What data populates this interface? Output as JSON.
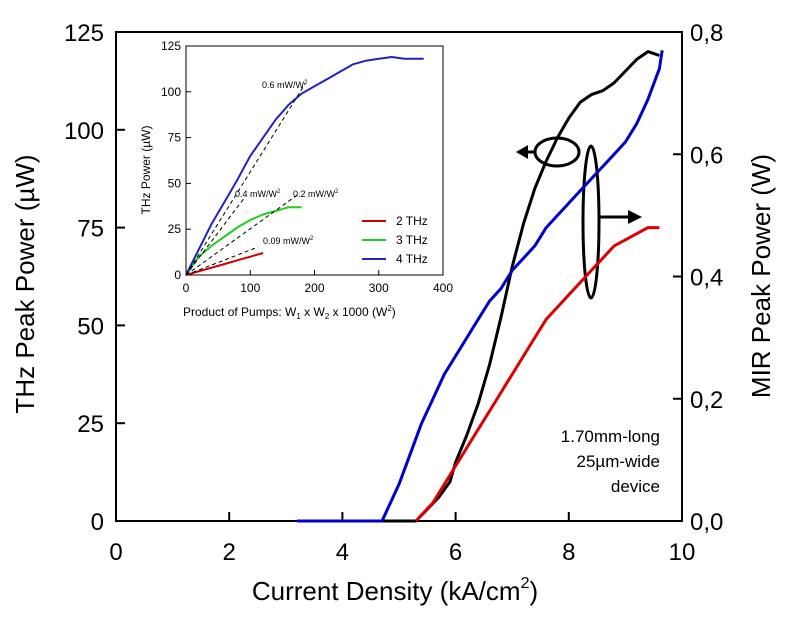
{
  "chart_data": [
    {
      "type": "line",
      "title": "",
      "xlabel": "Current Density (kA/cm",
      "xlabel_sup": "2",
      "xlabel_end": ")",
      "ylabel_left": "THz Peak Power (µW)",
      "ylabel_right": "MIR Peak Power (W)",
      "xlim": [
        0,
        10
      ],
      "ylim_left": [
        0,
        125
      ],
      "ylim_right": [
        0,
        0.8
      ],
      "x_ticks": [
        "0",
        "2",
        "4",
        "6",
        "8",
        "10"
      ],
      "y_left_ticks": [
        "0",
        "25",
        "50",
        "75",
        "100",
        "125"
      ],
      "y_right_ticks": [
        "0,0",
        "0,2",
        "0,4",
        "0,6",
        "0,8"
      ],
      "grid": false,
      "annotation": [
        "1.70mm-long",
        "25µm-wide",
        "device"
      ],
      "series": [
        {
          "axis": "left",
          "color": "#000000",
          "x": [
            3.2,
            4.0,
            5.0,
            5.3,
            5.5,
            5.7,
            5.9,
            6.0,
            6.2,
            6.4,
            6.6,
            6.8,
            7.0,
            7.2,
            7.4,
            7.6,
            7.8,
            8.0,
            8.2,
            8.4,
            8.6,
            8.8,
            9.0,
            9.2,
            9.4,
            9.6
          ],
          "y": [
            0,
            0,
            0,
            0,
            3,
            6,
            10,
            15,
            22,
            30,
            40,
            52,
            65,
            76,
            85,
            92,
            98,
            103,
            107,
            109,
            110,
            112,
            115,
            118,
            120,
            119
          ]
        },
        {
          "axis": "right",
          "color": "#0000cc",
          "x": [
            3.2,
            4.0,
            4.7,
            4.8,
            5.0,
            5.2,
            5.4,
            5.6,
            5.8,
            6.0,
            6.2,
            6.4,
            6.6,
            6.8,
            7.0,
            7.2,
            7.4,
            7.6,
            7.8,
            8.0,
            8.2,
            8.4,
            8.6,
            8.8,
            9.0,
            9.2,
            9.4,
            9.6,
            9.65
          ],
          "y": [
            0,
            0,
            0,
            0.02,
            0.06,
            0.11,
            0.16,
            0.2,
            0.24,
            0.27,
            0.3,
            0.33,
            0.36,
            0.38,
            0.41,
            0.43,
            0.45,
            0.48,
            0.5,
            0.52,
            0.54,
            0.56,
            0.58,
            0.6,
            0.62,
            0.65,
            0.69,
            0.74,
            0.77
          ]
        },
        {
          "axis": "right",
          "color": "#dd0000",
          "x": [
            5.3,
            5.4,
            5.6,
            5.8,
            6.0,
            6.2,
            6.4,
            6.6,
            6.8,
            7.0,
            7.2,
            7.4,
            7.6,
            7.8,
            8.0,
            8.2,
            8.4,
            8.6,
            8.8,
            9.0,
            9.2,
            9.4,
            9.6
          ],
          "y": [
            0,
            0.01,
            0.03,
            0.06,
            0.09,
            0.12,
            0.15,
            0.18,
            0.21,
            0.24,
            0.27,
            0.3,
            0.33,
            0.35,
            0.37,
            0.39,
            0.41,
            0.43,
            0.45,
            0.46,
            0.47,
            0.48,
            0.48
          ]
        }
      ]
    },
    {
      "type": "line",
      "title": "",
      "xlabel": "Product of Pumps: W",
      "xlabel_rest": [
        {
          "sub": "1",
          "text": " x W"
        },
        {
          "sub": "2",
          "text": " x 1000 (W"
        },
        {
          "sup": "2",
          "text": ")"
        }
      ],
      "ylabel": "THz Power (µW)",
      "xlim": [
        0,
        400
      ],
      "ylim": [
        0,
        125
      ],
      "x_ticks": [
        "0",
        "100",
        "200",
        "300",
        "400"
      ],
      "y_ticks": [
        "0",
        "25",
        "50",
        "75",
        "100",
        "125"
      ],
      "legend": "bottom-right",
      "slope_labels": [
        "0.6 mW/W",
        "0.4 mW/W",
        "0.2 mW/W",
        "0.09 mW/W"
      ],
      "slope_label_sup": "2",
      "series": [
        {
          "name": "2 THz",
          "color": "#cc0000",
          "x": [
            0,
            20,
            40,
            60,
            80,
            100,
            120
          ],
          "y": [
            0,
            2,
            4,
            6,
            8,
            10,
            12
          ]
        },
        {
          "name": "3 THz",
          "color": "#22cc22",
          "x": [
            0,
            20,
            40,
            60,
            80,
            100,
            120,
            140,
            160,
            180
          ],
          "y": [
            0,
            10,
            16,
            21,
            26,
            30,
            33,
            35,
            37,
            37
          ]
        },
        {
          "name": "4 THz",
          "color": "#2222bb",
          "x": [
            0,
            20,
            40,
            60,
            80,
            100,
            120,
            140,
            160,
            180,
            200,
            220,
            240,
            260,
            280,
            300,
            320,
            340,
            370
          ],
          "y": [
            0,
            14,
            28,
            40,
            52,
            65,
            75,
            85,
            93,
            99,
            103,
            107,
            111,
            115,
            117,
            118,
            119,
            118,
            118
          ]
        }
      ]
    }
  ]
}
